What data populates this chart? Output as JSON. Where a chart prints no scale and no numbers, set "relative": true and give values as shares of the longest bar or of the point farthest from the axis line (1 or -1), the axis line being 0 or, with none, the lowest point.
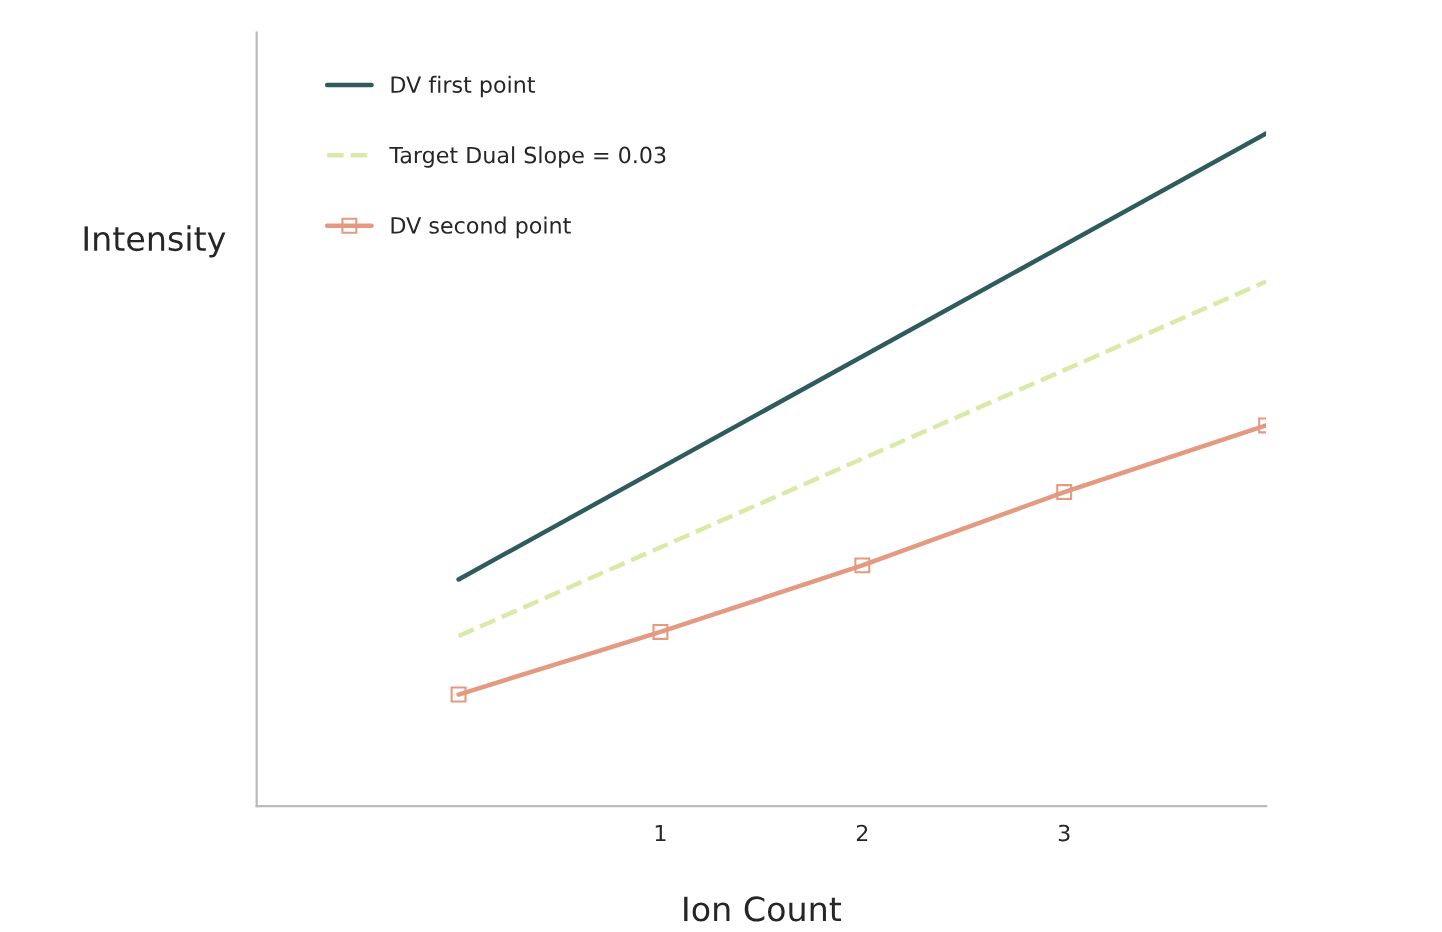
{
  "chart_data": {
    "type": "line",
    "xlabel": "Ion Count",
    "ylabel": "Intensity",
    "relative": true,
    "xlim": [
      -1,
      4
    ],
    "xticks": [
      1,
      2,
      3
    ],
    "grid": false,
    "legend": "top left",
    "series": [
      {
        "name": "DV first point",
        "color": "#2f5a5e",
        "x": [
          0,
          4
        ],
        "values": [
          0.337,
          1.0
        ],
        "line_style": "solid",
        "marker": "none"
      },
      {
        "name": "Target Dual Slope = 0.03",
        "color": "#d8eaa8",
        "x": [
          0,
          4
        ],
        "values": [
          0.253,
          0.78
        ],
        "line_style": "dashed",
        "marker": "none"
      },
      {
        "name": "DV second point",
        "color": "#e39a80",
        "x": [
          0,
          1,
          2,
          3,
          4
        ],
        "values": [
          0.166,
          0.259,
          0.358,
          0.467,
          0.566
        ],
        "line_style": "solid",
        "marker": "square"
      }
    ]
  }
}
